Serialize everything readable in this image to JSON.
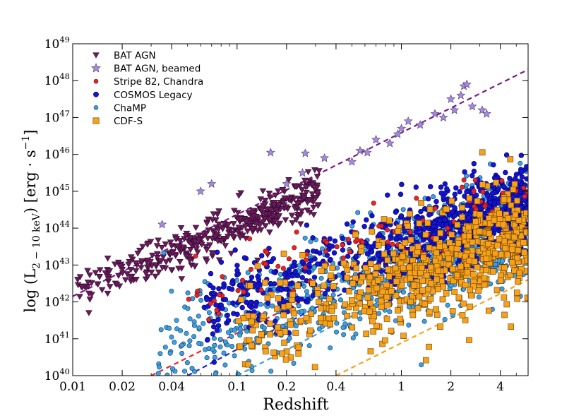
{
  "chart_data": {
    "type": "scatter",
    "title": "",
    "xlabel": "Redshift",
    "ylabel": "log (L 2−10 keV) [erg · s−1]",
    "ylabel_parts": {
      "log": "log",
      "L": "L",
      "sub": "2 − 10 keV",
      "unit": "[erg · s",
      "sup": "−1",
      "close": "]"
    },
    "xscale": "log",
    "yscale": "log10",
    "xlim": [
      0.01,
      5.9
    ],
    "ylim": [
      40,
      49
    ],
    "xticks": [
      0.01,
      0.02,
      0.04,
      0.1,
      0.2,
      0.4,
      1,
      2,
      4
    ],
    "xtick_labels": [
      "0.01",
      "0.02",
      "0.04",
      "0.1",
      "0.2",
      "0.4",
      "1",
      "2",
      "4"
    ],
    "yticks": [
      40,
      41,
      42,
      43,
      44,
      45,
      46,
      47,
      48,
      49
    ],
    "ytick_base": "10",
    "ytick_exponents": [
      "40",
      "41",
      "42",
      "43",
      "44",
      "45",
      "46",
      "47",
      "48",
      "49"
    ],
    "legend_position": "top-left",
    "series": [
      {
        "name": "BAT AGN",
        "marker": "triangle-down",
        "color": "#6b1a5e",
        "edge": "#2a0a25",
        "approx_count": 560,
        "trend_points": [
          [
            0.01,
            42.3
          ],
          [
            0.02,
            42.85
          ],
          [
            0.03,
            43.15
          ],
          [
            0.05,
            43.55
          ],
          [
            0.1,
            44.0
          ],
          [
            0.2,
            44.55
          ],
          [
            0.3,
            44.85
          ]
        ]
      },
      {
        "name": "BAT AGN, beamed",
        "marker": "star",
        "color": "#a58ad8",
        "edge": "#4a3a7a",
        "approx_count": 70,
        "points": [
          [
            0.16,
            46.05
          ],
          [
            0.26,
            46.03
          ],
          [
            0.34,
            45.9
          ],
          [
            0.56,
            46.1
          ],
          [
            0.62,
            46.05
          ],
          [
            0.85,
            46.3
          ],
          [
            1.0,
            46.7
          ],
          [
            1.1,
            46.9
          ],
          [
            1.3,
            46.8
          ],
          [
            1.6,
            47.1
          ],
          [
            2.0,
            47.5
          ],
          [
            2.3,
            47.6
          ],
          [
            2.4,
            47.85
          ],
          [
            2.5,
            47.9
          ],
          [
            2.7,
            47.3
          ],
          [
            3.1,
            47.2
          ],
          [
            3.3,
            47.1
          ],
          [
            0.7,
            46.4
          ],
          [
            0.95,
            46.55
          ],
          [
            1.8,
            47.0
          ],
          [
            2.1,
            47.2
          ],
          [
            0.25,
            45.5
          ],
          [
            0.2,
            45.2
          ],
          [
            0.5,
            45.8
          ],
          [
            0.07,
            45.2
          ],
          [
            0.06,
            45.0
          ],
          [
            0.035,
            44.1
          ]
        ]
      },
      {
        "name": "Stripe 82, Chandra",
        "marker": "circle",
        "color": "#e3262a",
        "edge": "#7a0000",
        "approx_count": 150,
        "trend_points": [
          [
            0.03,
            40.0
          ],
          [
            0.1,
            41.3
          ],
          [
            0.3,
            42.6
          ],
          [
            1,
            43.6
          ],
          [
            3,
            44.5
          ],
          [
            5.9,
            45.1
          ]
        ]
      },
      {
        "name": "COSMOS Legacy",
        "marker": "circle",
        "color": "#1414d2",
        "edge": "#000060",
        "approx_count": 1600,
        "trend_points": [
          [
            0.05,
            40.0
          ],
          [
            0.1,
            40.8
          ],
          [
            0.3,
            41.9
          ],
          [
            1,
            43.2
          ],
          [
            3,
            44.3
          ],
          [
            5.9,
            44.9
          ]
        ]
      },
      {
        "name": "ChaMP",
        "marker": "circle",
        "color": "#3fa0e0",
        "edge": "#0a3a6a",
        "approx_count": 1300,
        "trend_points": [
          [
            0.1,
            40.0
          ],
          [
            0.3,
            41.0
          ],
          [
            1,
            42.2
          ],
          [
            3,
            43.4
          ],
          [
            5.9,
            44.1
          ]
        ]
      },
      {
        "name": "CDF-S",
        "marker": "square",
        "color": "#f5a21a",
        "edge": "#6a3a00",
        "approx_count": 700,
        "trend_points": [
          [
            0.4,
            40.0
          ],
          [
            1,
            40.8
          ],
          [
            3,
            42.0
          ],
          [
            5.9,
            42.6
          ]
        ]
      }
    ],
    "fit_lines": [
      {
        "series": "BAT AGN, beamed",
        "color": "#7a1a85",
        "points": [
          [
            0.01,
            42.15
          ],
          [
            5.9,
            48.3
          ]
        ]
      },
      {
        "series": "Stripe 82, Chandra",
        "color": "#e32a2a",
        "points": [
          [
            0.03,
            40.0
          ],
          [
            5.9,
            45.05
          ]
        ]
      },
      {
        "series": "COSMOS Legacy",
        "color": "#1e2ad8",
        "points": [
          [
            0.05,
            40.0
          ],
          [
            5.9,
            44.9
          ]
        ]
      },
      {
        "series": "ChaMP",
        "color": "#3a9ee0",
        "points": [
          [
            0.1,
            40.0
          ],
          [
            5.9,
            44.1
          ]
        ]
      },
      {
        "series": "CDF-S",
        "color": "#f5a21a",
        "points": [
          [
            0.4,
            40.0
          ],
          [
            5.9,
            42.6
          ]
        ]
      }
    ]
  }
}
